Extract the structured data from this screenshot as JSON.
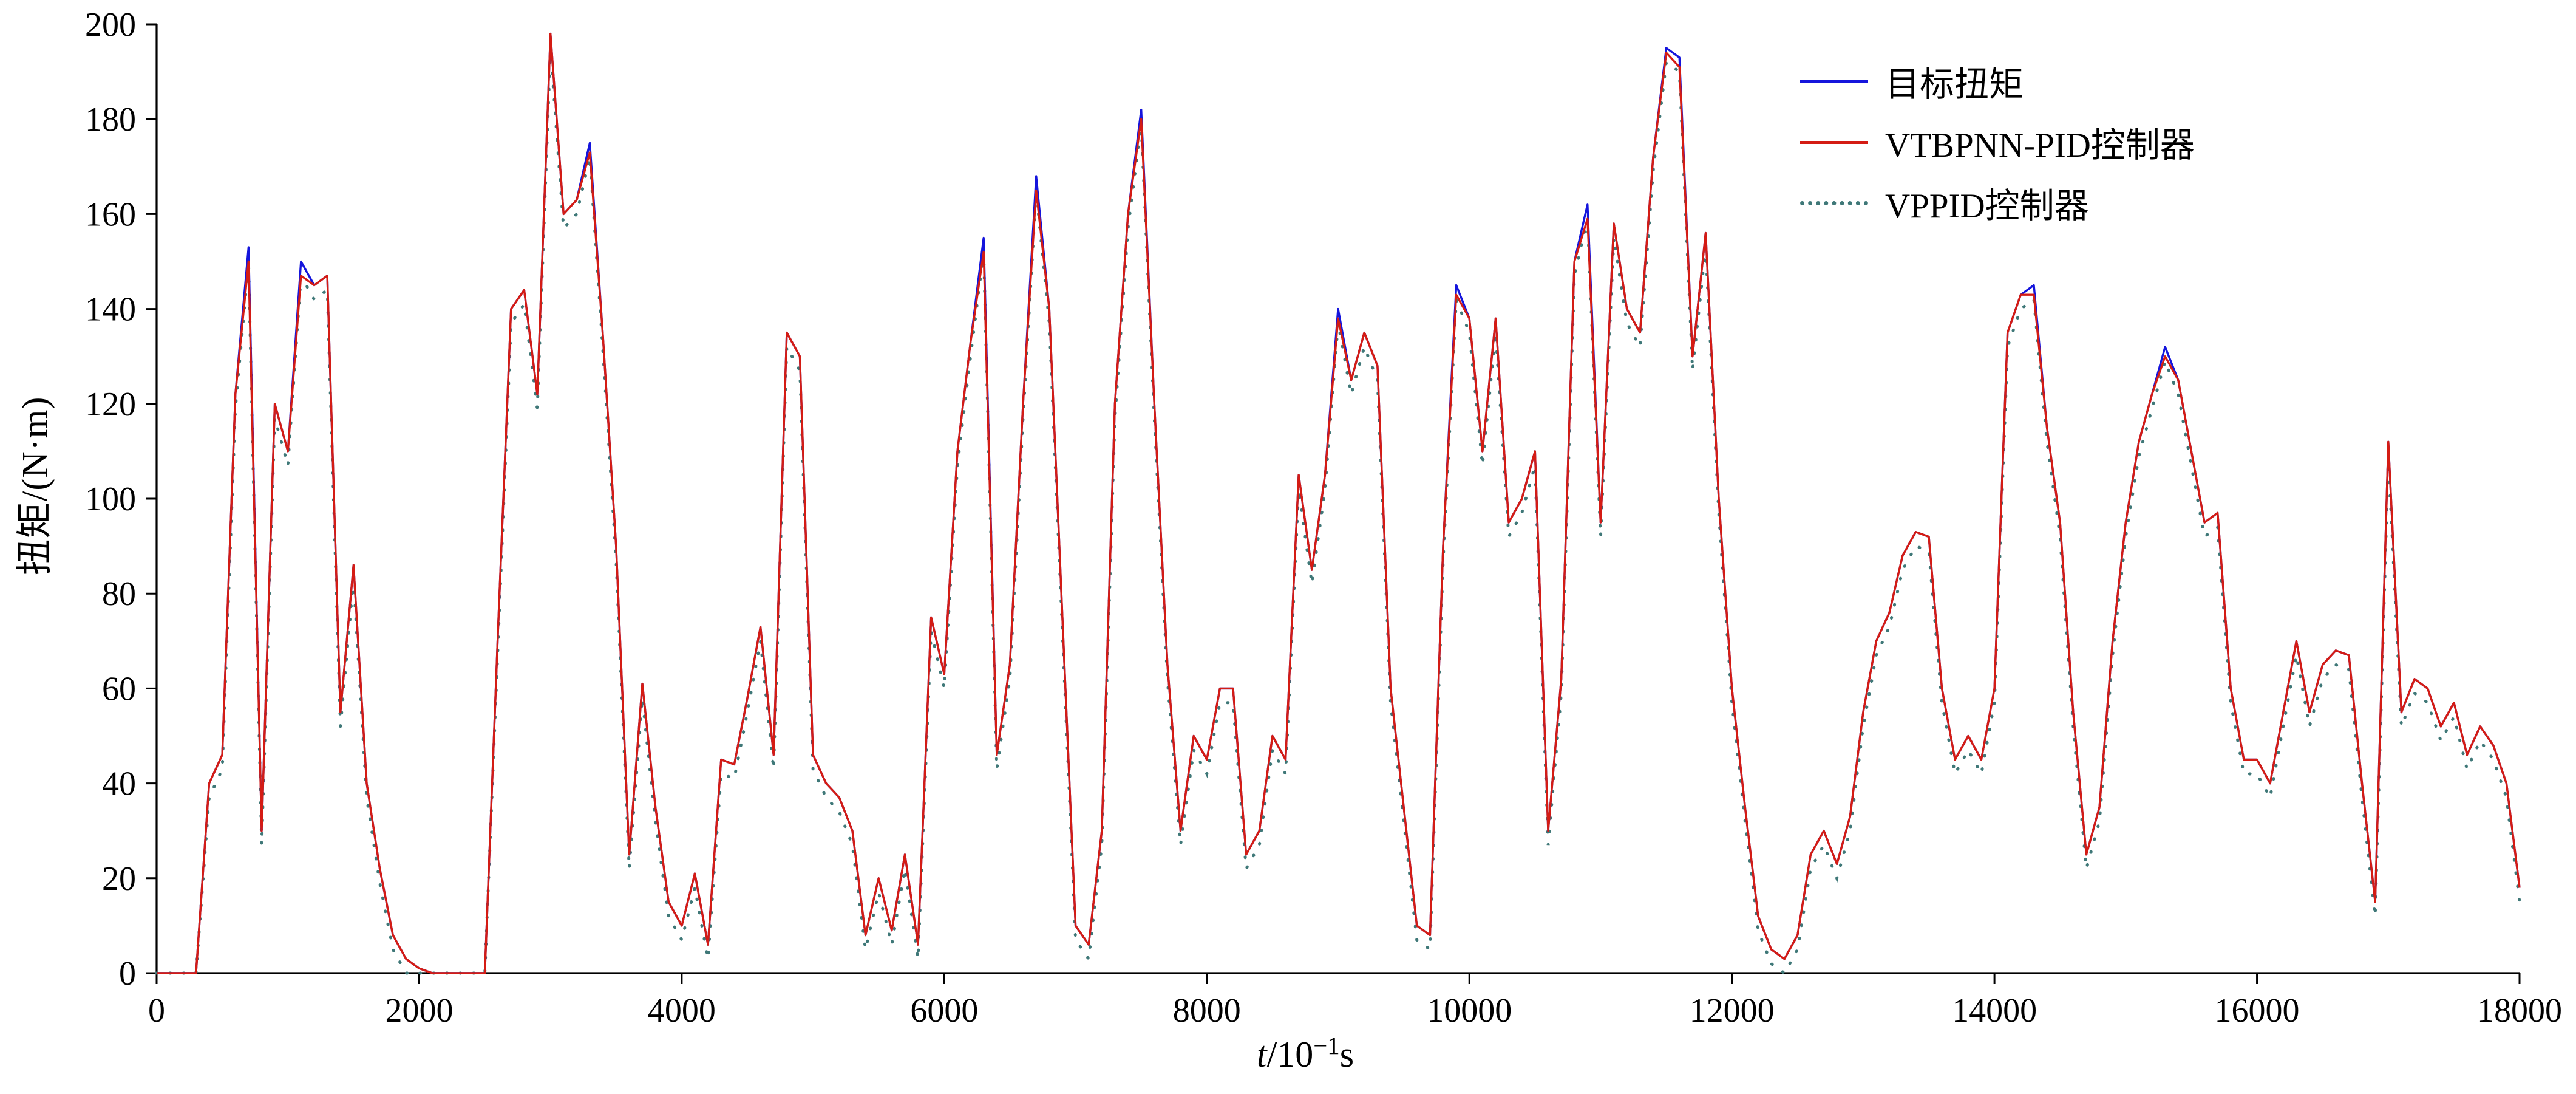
{
  "figure": {
    "ylabel": "扭矩/(N·m)",
    "xlabel_display": {
      "var": "t",
      "denom": "/10",
      "exp": "−1",
      "unit": "s"
    },
    "background": "#ffffff",
    "axis_color": "#000000"
  },
  "legend": {
    "items": [
      {
        "label": "目标扭矩",
        "color": "#1515dc",
        "style": "solid"
      },
      {
        "label": "VTBPNN-PID控制器",
        "color": "#d41c14",
        "style": "solid"
      },
      {
        "label": "VPPID控制器",
        "color": "#3f7878",
        "style": "dotted"
      }
    ]
  },
  "chart_data": {
    "type": "line",
    "title": "",
    "xlabel": "t/10⁻¹s",
    "ylabel": "扭矩/(N·m)",
    "xlim": [
      0,
      18000
    ],
    "ylim": [
      0,
      200
    ],
    "x_ticks": [
      0,
      2000,
      4000,
      6000,
      8000,
      10000,
      12000,
      14000,
      16000,
      18000
    ],
    "y_ticks": [
      0,
      20,
      40,
      60,
      80,
      100,
      120,
      140,
      160,
      180,
      200
    ],
    "grid": false,
    "legend_position": "top-right-inside",
    "x_start": 0,
    "x_step": 100,
    "series": [
      {
        "name": "目标扭矩",
        "color": "#1515dc",
        "line_style": "solid",
        "values": [
          0,
          0,
          0,
          0,
          40,
          46,
          122,
          153,
          30,
          120,
          110,
          150,
          145,
          147,
          55,
          86,
          40,
          22,
          8,
          3,
          1,
          0,
          0,
          0,
          0,
          0,
          72,
          140,
          144,
          122,
          198,
          160,
          163,
          175,
          134,
          90,
          25,
          61,
          35,
          15,
          10,
          21,
          6,
          45,
          44,
          58,
          73,
          46,
          135,
          130,
          46,
          40,
          37,
          30,
          8,
          20,
          9,
          25,
          6,
          75,
          63,
          110,
          133,
          155,
          46,
          65,
          120,
          168,
          140,
          75,
          10,
          6,
          30,
          120,
          160,
          182,
          120,
          65,
          30,
          50,
          45,
          60,
          60,
          25,
          30,
          50,
          45,
          105,
          85,
          105,
          140,
          125,
          135,
          128,
          60,
          35,
          10,
          8,
          90,
          145,
          138,
          110,
          138,
          95,
          100,
          110,
          30,
          62,
          150,
          162,
          95,
          158,
          140,
          135,
          172,
          195,
          193,
          130,
          156,
          100,
          60,
          35,
          12,
          5,
          3,
          8,
          25,
          30,
          23,
          33,
          55,
          70,
          76,
          88,
          93,
          92,
          60,
          45,
          50,
          45,
          60,
          135,
          143,
          145,
          115,
          95,
          55,
          25,
          35,
          70,
          95,
          112,
          122,
          132,
          125,
          110,
          95,
          97,
          60,
          45,
          45,
          40,
          55,
          70,
          55,
          65,
          68,
          67,
          40,
          15,
          112,
          55,
          62,
          60,
          52,
          57,
          46,
          52,
          48,
          40,
          18
        ]
      },
      {
        "name": "VTBPNN-PID控制器",
        "color": "#d41c14",
        "line_style": "solid",
        "values": [
          0,
          0,
          0,
          0,
          40,
          46,
          122,
          150,
          30,
          120,
          110,
          147,
          145,
          147,
          55,
          86,
          40,
          22,
          8,
          3,
          1,
          0,
          0,
          0,
          0,
          0,
          72,
          140,
          144,
          122,
          198,
          160,
          163,
          173,
          134,
          90,
          25,
          61,
          35,
          15,
          10,
          21,
          6,
          45,
          44,
          58,
          73,
          46,
          135,
          130,
          46,
          40,
          37,
          30,
          8,
          20,
          9,
          25,
          6,
          75,
          63,
          110,
          133,
          152,
          46,
          65,
          120,
          165,
          140,
          75,
          10,
          6,
          30,
          120,
          160,
          180,
          120,
          65,
          30,
          50,
          45,
          60,
          60,
          25,
          30,
          50,
          45,
          105,
          85,
          105,
          138,
          125,
          135,
          128,
          60,
          35,
          10,
          8,
          90,
          143,
          138,
          110,
          138,
          95,
          100,
          110,
          30,
          62,
          150,
          159,
          95,
          158,
          140,
          135,
          172,
          194,
          191,
          130,
          156,
          100,
          60,
          35,
          12,
          5,
          3,
          8,
          25,
          30,
          23,
          33,
          55,
          70,
          76,
          88,
          93,
          92,
          60,
          45,
          50,
          45,
          60,
          135,
          143,
          143,
          115,
          95,
          55,
          25,
          35,
          70,
          95,
          112,
          122,
          130,
          125,
          110,
          95,
          97,
          60,
          45,
          45,
          40,
          55,
          70,
          55,
          65,
          68,
          67,
          40,
          15,
          112,
          55,
          62,
          60,
          52,
          57,
          46,
          52,
          48,
          40,
          18
        ]
      },
      {
        "name": "VPPID控制器",
        "color": "#3f7878",
        "line_style": "dotted",
        "values": [
          0,
          0,
          0,
          0,
          37,
          43,
          119,
          150,
          27,
          117,
          107,
          147,
          142,
          144,
          52,
          83,
          37,
          19,
          5,
          0,
          0,
          0,
          0,
          0,
          0,
          0,
          69,
          137,
          141,
          119,
          195,
          157,
          160,
          172,
          131,
          87,
          22,
          58,
          32,
          12,
          7,
          18,
          3,
          42,
          41,
          55,
          70,
          43,
          132,
          127,
          43,
          37,
          34,
          27,
          5,
          17,
          6,
          22,
          3,
          72,
          60,
          107,
          130,
          152,
          43,
          62,
          117,
          165,
          137,
          72,
          7,
          3,
          27,
          117,
          157,
          179,
          117,
          62,
          27,
          47,
          42,
          57,
          57,
          22,
          27,
          47,
          42,
          102,
          82,
          102,
          137,
          122,
          132,
          125,
          57,
          32,
          7,
          5,
          87,
          142,
          135,
          107,
          135,
          92,
          97,
          107,
          27,
          59,
          147,
          159,
          92,
          155,
          137,
          132,
          169,
          192,
          190,
          127,
          153,
          97,
          57,
          32,
          9,
          2,
          0,
          5,
          22,
          27,
          20,
          30,
          52,
          67,
          73,
          85,
          90,
          89,
          57,
          42,
          47,
          42,
          57,
          132,
          140,
          142,
          112,
          92,
          52,
          22,
          32,
          67,
          92,
          109,
          119,
          129,
          122,
          107,
          92,
          94,
          57,
          42,
          42,
          37,
          52,
          67,
          52,
          62,
          65,
          64,
          37,
          12,
          109,
          52,
          59,
          57,
          49,
          54,
          43,
          49,
          45,
          37,
          15
        ]
      }
    ]
  }
}
